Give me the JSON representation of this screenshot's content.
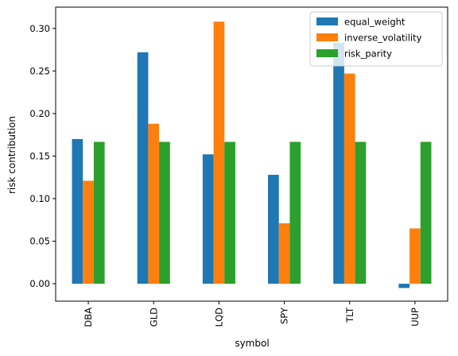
{
  "chart_data": {
    "type": "bar",
    "xlabel": "symbol",
    "ylabel": "risk contribution",
    "categories": [
      "DBA",
      "GLD",
      "LQD",
      "SPY",
      "TLT",
      "UUP"
    ],
    "series": [
      {
        "name": "equal_weight",
        "color": "#1f77b4",
        "values": [
          0.17,
          0.272,
          0.152,
          0.128,
          0.283,
          -0.005
        ]
      },
      {
        "name": "inverse_volatility",
        "color": "#ff7f0e",
        "values": [
          0.121,
          0.188,
          0.308,
          0.071,
          0.247,
          0.065
        ]
      },
      {
        "name": "risk_parity",
        "color": "#2ca02c",
        "values": [
          0.1667,
          0.1667,
          0.1667,
          0.1667,
          0.1667,
          0.1667
        ]
      }
    ],
    "ylim": [
      -0.0205,
      0.325
    ],
    "yticks": [
      "0.00",
      "0.05",
      "0.10",
      "0.15",
      "0.20",
      "0.25",
      "0.30"
    ],
    "legend": "top-right",
    "grid": false
  }
}
